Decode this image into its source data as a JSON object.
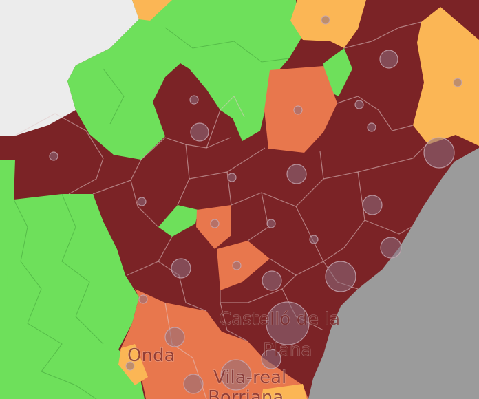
{
  "places": [
    "Castelló de la",
    "Plana",
    "Onda",
    "Vila-real",
    "Borriana"
  ]
}
